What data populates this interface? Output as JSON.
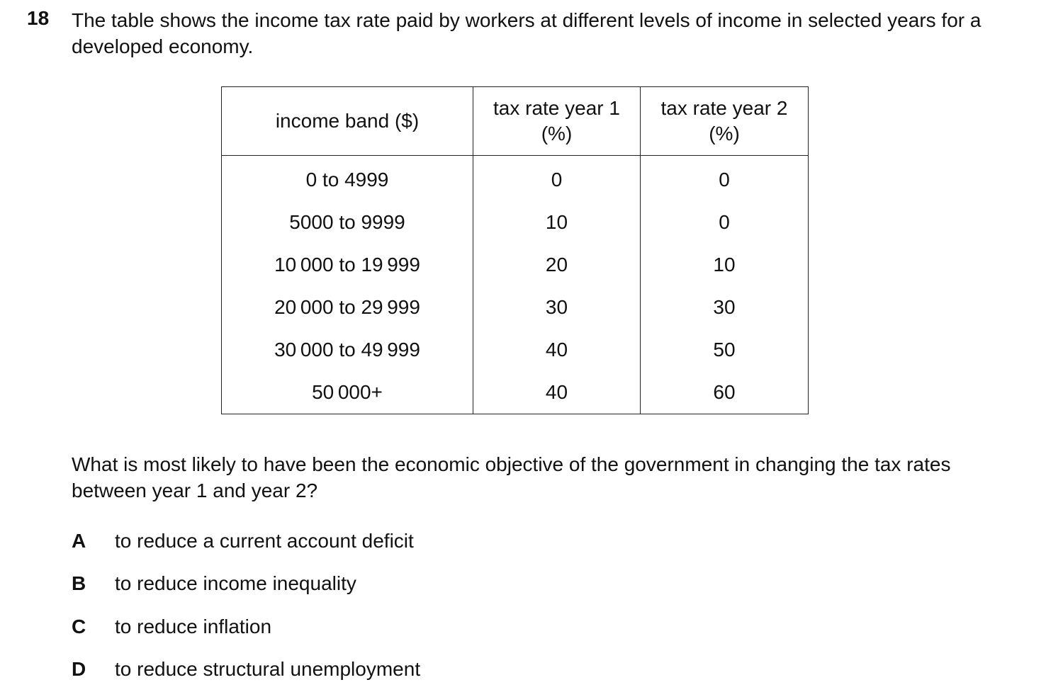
{
  "question": {
    "number": "18",
    "intro": "The table shows the income tax rate paid by workers at different levels of income in selected years for a developed economy.",
    "table": {
      "headers": [
        [
          "income band ($)"
        ],
        [
          "tax rate year 1",
          "(%)"
        ],
        [
          "tax rate year 2",
          "(%)"
        ]
      ],
      "rows": [
        [
          "0 to 4999",
          0,
          0
        ],
        [
          "5000 to 9999",
          10,
          0
        ],
        [
          "10 000 to 19 999",
          20,
          10
        ],
        [
          "20 000 to 29 999",
          30,
          30
        ],
        [
          "30 000 to 49 999",
          40,
          50
        ],
        [
          "50 000+",
          40,
          60
        ]
      ]
    },
    "prompt": "What is most likely to have been the economic objective of the government in changing the tax rates between year 1 and year 2?",
    "options": [
      {
        "letter": "A",
        "text": "to reduce a current account deficit"
      },
      {
        "letter": "B",
        "text": "to reduce income inequality"
      },
      {
        "letter": "C",
        "text": "to reduce inflation"
      },
      {
        "letter": "D",
        "text": "to reduce structural unemployment"
      }
    ]
  }
}
